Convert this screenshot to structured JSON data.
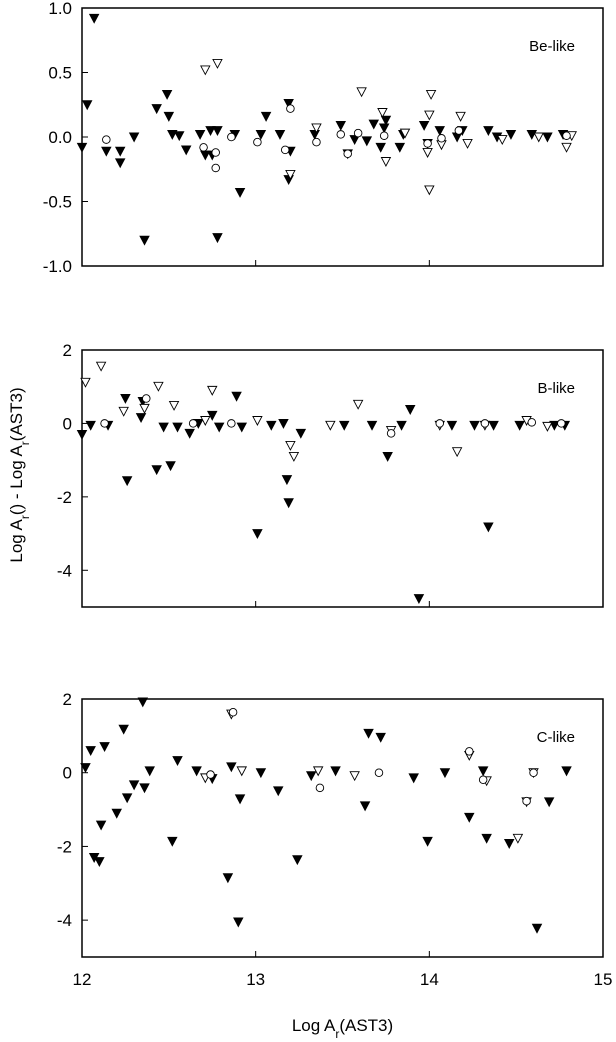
{
  "chart_data": [
    {
      "type": "scatter",
      "annotation": "Be-like",
      "xlim": [
        12,
        15
      ],
      "xticks": [
        12,
        13,
        14,
        15
      ],
      "xtick_labels": false,
      "ylim": [
        -1,
        1
      ],
      "yticks": [
        {
          "value": -1,
          "label": "-1.0"
        },
        {
          "value": -0.5,
          "label": "-0.5"
        },
        {
          "value": 0,
          "label": "0.0"
        },
        {
          "value": 0.5,
          "label": "0.5"
        },
        {
          "value": 1,
          "label": "1.0"
        }
      ],
      "series": [
        {
          "marker": "triangle-down",
          "filled": true,
          "color": "#000000",
          "x": [
            12.0,
            12.07,
            12.03,
            12.14,
            12.22,
            12.22,
            12.3,
            12.36,
            12.43,
            12.49,
            12.5,
            12.52,
            12.56,
            12.6,
            12.68,
            12.71,
            12.74,
            12.78,
            12.78,
            12.75,
            12.88,
            12.91,
            13.03,
            13.06,
            13.14,
            13.19,
            13.19,
            13.2,
            13.34,
            13.49,
            13.53,
            13.57,
            13.64,
            13.68,
            13.72,
            13.75,
            13.74,
            13.83,
            13.85,
            13.97,
            13.99,
            14.06,
            14.16,
            14.19,
            14.34,
            14.39,
            14.47,
            14.59,
            14.68,
            14.77
          ],
          "y": [
            -0.08,
            0.92,
            0.25,
            -0.11,
            -0.11,
            -0.2,
            0,
            -0.8,
            0.22,
            0.33,
            0.16,
            0.02,
            0.01,
            -0.1,
            0.02,
            -0.14,
            0.05,
            0.05,
            -0.78,
            -0.14,
            0.02,
            -0.43,
            0.02,
            0.16,
            0.02,
            0.26,
            -0.33,
            -0.11,
            0.02,
            0.09,
            -0.13,
            -0.02,
            -0.03,
            0.1,
            -0.08,
            0.13,
            0.07,
            -0.08,
            0.02,
            0.09,
            -0.05,
            0.05,
            0,
            0.05,
            0.05,
            0,
            0.02,
            0.02,
            0,
            0.02
          ]
        },
        {
          "marker": "triangle-down",
          "filled": false,
          "color": "#000000",
          "x": [
            12.71,
            12.78,
            13.2,
            13.35,
            13.61,
            13.73,
            13.75,
            13.86,
            14.0,
            14.01,
            14.0,
            13.99,
            14.07,
            14.18,
            14.22,
            14.42,
            14.63,
            14.79,
            14.82
          ],
          "y": [
            0.52,
            0.57,
            -0.29,
            0.07,
            0.35,
            0.19,
            -0.19,
            0.03,
            -0.41,
            0.33,
            0.17,
            -0.12,
            -0.06,
            0.16,
            -0.05,
            -0.02,
            0,
            -0.08,
            0.01
          ]
        },
        {
          "marker": "circle",
          "filled": false,
          "color": "#000000",
          "x": [
            12.14,
            12.7,
            12.77,
            12.77,
            12.86,
            13.01,
            13.17,
            13.2,
            13.35,
            13.49,
            13.53,
            13.59,
            13.74,
            13.99,
            14.07,
            14.17,
            14.79
          ],
          "y": [
            -0.02,
            -0.08,
            -0.24,
            -0.12,
            0,
            -0.04,
            -0.1,
            0.22,
            -0.04,
            0.02,
            -0.13,
            0.03,
            0.01,
            -0.05,
            -0.01,
            0.05,
            0.01
          ]
        }
      ]
    },
    {
      "type": "scatter",
      "annotation": "B-like",
      "y_label": [
        "Log A",
        "r",
        "() - Log A",
        "r",
        "(AST3)"
      ],
      "xlim": [
        12,
        15
      ],
      "xticks": [
        12,
        13,
        14,
        15
      ],
      "xtick_labels": false,
      "ylim": [
        -5,
        2
      ],
      "yticks": [
        -4,
        -2,
        0,
        2
      ],
      "series": [
        {
          "marker": "triangle-down",
          "filled": true,
          "color": "#000000",
          "x": [
            12.0,
            12.05,
            12.15,
            12.25,
            12.26,
            12.34,
            12.35,
            12.43,
            12.51,
            12.47,
            12.55,
            12.62,
            12.67,
            12.75,
            12.79,
            12.89,
            12.92,
            13.01,
            13.09,
            13.16,
            13.18,
            13.19,
            13.26,
            13.51,
            13.67,
            13.76,
            13.84,
            13.89,
            13.94,
            14.13,
            14.26,
            14.34,
            14.37,
            14.52,
            14.72,
            14.78
          ],
          "y": [
            -0.3,
            -0.05,
            -0.05,
            0.68,
            -1.56,
            0.16,
            0.6,
            -1.26,
            -1.15,
            -0.1,
            -0.1,
            -0.27,
            0,
            0.22,
            -0.1,
            0.74,
            -0.1,
            -3.0,
            -0.05,
            0,
            -1.53,
            -2.16,
            -0.27,
            -0.05,
            -0.05,
            -0.9,
            -0.05,
            0.38,
            -4.77,
            -0.05,
            -0.05,
            -2.82,
            -0.05,
            -0.05,
            -0.05,
            -0.05
          ]
        },
        {
          "marker": "triangle-down",
          "filled": false,
          "color": "#000000",
          "x": [
            12.02,
            12.11,
            12.24,
            12.36,
            12.44,
            12.53,
            12.75,
            12.71,
            13.01,
            13.22,
            13.2,
            13.43,
            13.59,
            13.78,
            14.16,
            14.06,
            14.32,
            14.56,
            14.68
          ],
          "y": [
            1.12,
            1.56,
            0.33,
            0.41,
            1.01,
            0.49,
            0.9,
            0.08,
            0.08,
            -0.9,
            -0.6,
            -0.05,
            0.52,
            -0.19,
            -0.77,
            -0.05,
            -0.05,
            0.08,
            -0.08
          ]
        },
        {
          "marker": "circle",
          "filled": false,
          "color": "#000000",
          "x": [
            12.13,
            12.37,
            12.64,
            12.86,
            13.78,
            14.06,
            14.32,
            14.59,
            14.76
          ],
          "y": [
            0,
            0.68,
            0,
            0,
            -0.27,
            0,
            0,
            0.03,
            0
          ]
        }
      ]
    },
    {
      "type": "scatter",
      "annotation": "C-like",
      "x_label": [
        "Log A",
        "r",
        "(AST3)"
      ],
      "xlim": [
        12,
        15
      ],
      "xticks": [
        12,
        13,
        14,
        15
      ],
      "xtick_labels": true,
      "ylim": [
        -5,
        2
      ],
      "yticks": [
        -4,
        -2,
        0,
        2
      ],
      "series": [
        {
          "marker": "triangle-down",
          "filled": true,
          "color": "#000000",
          "x": [
            12.02,
            12.05,
            12.07,
            12.1,
            12.11,
            12.13,
            12.2,
            12.24,
            12.26,
            12.3,
            12.35,
            12.36,
            12.39,
            12.52,
            12.55,
            12.66,
            12.75,
            12.84,
            12.86,
            12.9,
            12.91,
            13.03,
            13.13,
            13.24,
            13.32,
            13.46,
            13.63,
            13.65,
            13.72,
            13.91,
            13.99,
            14.09,
            14.23,
            14.31,
            14.33,
            14.46,
            14.62,
            14.69,
            14.79
          ],
          "y": [
            0.14,
            0.6,
            -2.3,
            -2.41,
            -1.42,
            0.71,
            -1.1,
            1.18,
            -0.68,
            -0.33,
            1.92,
            -0.41,
            0.05,
            -1.86,
            0.33,
            0.05,
            -0.16,
            -2.85,
            0.16,
            -4.05,
            -0.71,
            0,
            -0.49,
            -2.36,
            -0.08,
            0.05,
            -0.9,
            1.07,
            0.96,
            -0.14,
            -1.86,
            0,
            -1.21,
            0.05,
            -1.78,
            -1.92,
            -4.22,
            -0.79,
            0.05
          ]
        },
        {
          "marker": "triangle-down",
          "filled": false,
          "color": "#000000",
          "x": [
            12.86,
            12.71,
            12.92,
            13.36,
            13.57,
            14.23,
            14.33,
            14.51,
            14.56,
            14.6
          ],
          "y": [
            1.59,
            -0.14,
            0.05,
            0.05,
            -0.08,
            0.47,
            -0.22,
            -1.78,
            -0.79,
            0
          ]
        },
        {
          "marker": "circle",
          "filled": false,
          "color": "#000000",
          "x": [
            12.87,
            12.74,
            13.37,
            13.71,
            14.23,
            14.31,
            14.56,
            14.6
          ],
          "y": [
            1.64,
            -0.05,
            -0.41,
            0,
            0.58,
            -0.19,
            -0.77,
            0
          ]
        }
      ]
    }
  ]
}
